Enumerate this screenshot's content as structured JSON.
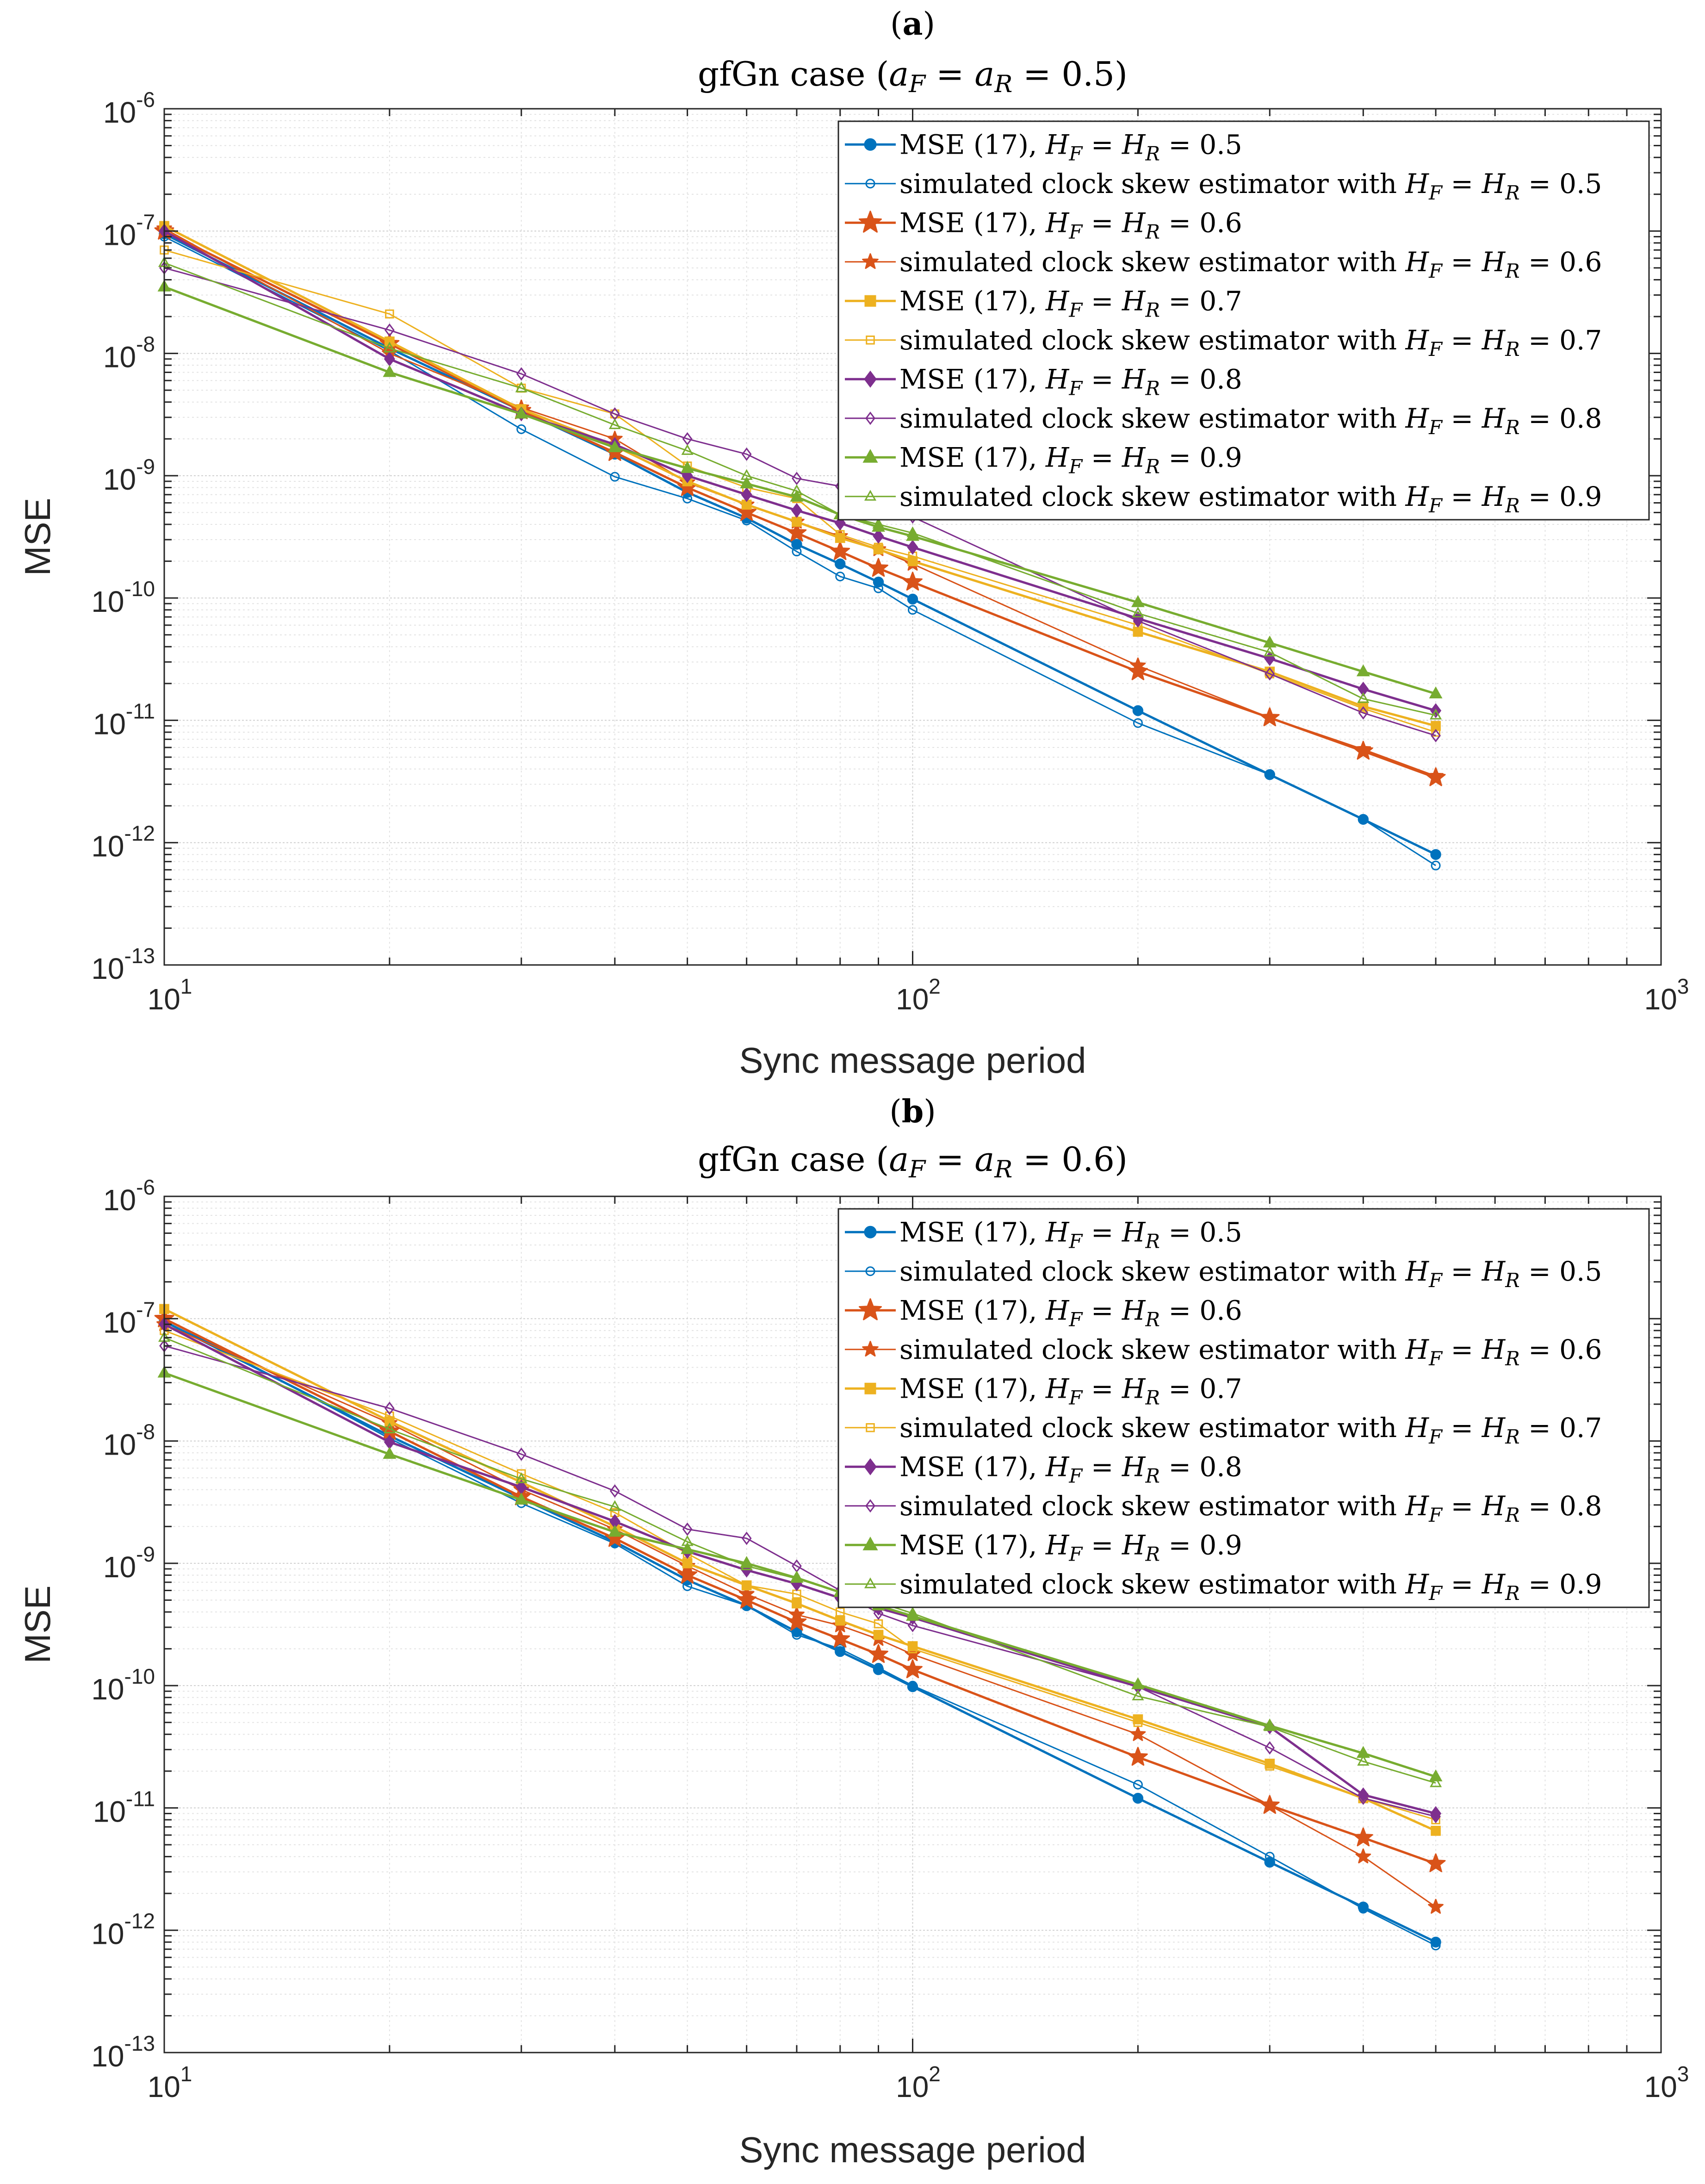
{
  "x_values": [
    10,
    20,
    30,
    40,
    50,
    60,
    70,
    80,
    90,
    100,
    200,
    300,
    400,
    500
  ],
  "chart_data": [
    {
      "type": "line",
      "panel_label": "(a)",
      "title": "gfGn case (a_F = a_R = 0.5)",
      "title_text": "gfGn case (",
      "title_math": "a_F = a_R = 0.5",
      "xlabel": "Sync message period",
      "ylabel": "MSE",
      "xscale": "log",
      "yscale": "log",
      "xlim": [
        10,
        1000
      ],
      "ylim": [
        1e-13,
        1e-06
      ],
      "grid": true,
      "legend_position": "top-right",
      "x_tick_labels": [
        {
          "base": "10",
          "exp": "1"
        },
        {
          "base": "10",
          "exp": "2"
        },
        {
          "base": "10",
          "exp": "3"
        }
      ],
      "y_tick_labels": [
        {
          "base": "10",
          "exp": "-13"
        },
        {
          "base": "10",
          "exp": "-12"
        },
        {
          "base": "10",
          "exp": "-11"
        },
        {
          "base": "10",
          "exp": "-10"
        },
        {
          "base": "10",
          "exp": "-9"
        },
        {
          "base": "10",
          "exp": "-8"
        },
        {
          "base": "10",
          "exp": "-7"
        },
        {
          "base": "10",
          "exp": "-6"
        }
      ],
      "series": [
        {
          "name": "MSE (17), H_F = H_R = 0.5",
          "legend_prefix": "MSE (17), ",
          "legend_math": "H_F = H_R = 0.5",
          "color": "#0072BD",
          "marker": "circle",
          "filled": true,
          "bold": true,
          "values": [
            9.5e-08,
            1.1e-08,
            3.4e-09,
            1.5e-09,
            7.3e-10,
            4.5e-10,
            2.75e-10,
            1.9e-10,
            1.35e-10,
            9.8e-11,
            1.2e-11,
            3.6e-12,
            1.55e-12,
            8e-13
          ]
        },
        {
          "name": "simulated clock skew estimator with H_F = H_R = 0.5",
          "legend_prefix": "simulated clock skew estimator with ",
          "legend_math": "H_F = H_R = 0.5",
          "color": "#0072BD",
          "marker": "circle",
          "filled": false,
          "bold": false,
          "values": [
            9e-08,
            1.05e-08,
            2.4e-09,
            9.8e-10,
            6.5e-10,
            4.3e-10,
            2.4e-10,
            1.5e-10,
            1.2e-10,
            8e-11,
            9.5e-12,
            3.6e-12,
            1.55e-12,
            6.5e-13
          ]
        },
        {
          "name": "MSE (17), H_F = H_R = 0.6",
          "legend_prefix": "MSE (17), ",
          "legend_math": "H_F = H_R = 0.6",
          "color": "#D95319",
          "marker": "star",
          "filled": true,
          "bold": true,
          "values": [
            1e-07,
            1.2e-08,
            3.4e-09,
            1.55e-09,
            8e-10,
            5e-10,
            3.4e-10,
            2.4e-10,
            1.75e-10,
            1.35e-10,
            2.5e-11,
            1.05e-11,
            5.6e-12,
            3.4e-12
          ]
        },
        {
          "name": "simulated clock skew estimator with H_F = H_R = 0.6",
          "legend_prefix": "simulated clock skew estimator with ",
          "legend_math": "H_F = H_R = 0.6",
          "color": "#D95319",
          "marker": "star",
          "filled": true,
          "bold": false,
          "values": [
            1.05e-07,
            1e-08,
            3.6e-09,
            2e-09,
            8.8e-10,
            5.8e-10,
            4.2e-10,
            3.2e-10,
            2.5e-10,
            1.9e-10,
            2.8e-11,
            1.05e-11,
            5.8e-12,
            3.5e-12
          ]
        },
        {
          "name": "MSE (17), H_F = H_R = 0.7",
          "legend_prefix": "MSE (17), ",
          "legend_math": "H_F = H_R = 0.7",
          "color": "#EDB120",
          "marker": "square",
          "filled": true,
          "bold": true,
          "values": [
            1.1e-07,
            1.25e-08,
            3.5e-09,
            1.75e-09,
            9e-10,
            5.8e-10,
            4.2e-10,
            3.1e-10,
            2.5e-10,
            2e-10,
            5.3e-11,
            2.5e-11,
            1.3e-11,
            9e-12
          ]
        },
        {
          "name": "simulated clock skew estimator with H_F = H_R = 0.7",
          "legend_prefix": "simulated clock skew estimator with ",
          "legend_math": "H_F = H_R = 0.7",
          "color": "#EDB120",
          "marker": "square",
          "filled": false,
          "bold": false,
          "values": [
            7e-08,
            2.1e-08,
            5.2e-09,
            3.2e-09,
            1.2e-09,
            8e-10,
            6.5e-10,
            3.3e-10,
            2.6e-10,
            2.2e-10,
            6e-11,
            2.4e-11,
            1.25e-11,
            8e-12
          ]
        },
        {
          "name": "MSE (17), H_F = H_R = 0.8",
          "legend_prefix": "MSE (17), ",
          "legend_math": "H_F = H_R = 0.8",
          "color": "#7E2F8E",
          "marker": "diamond",
          "filled": true,
          "bold": true,
          "values": [
            1e-07,
            9e-09,
            3.2e-09,
            1.8e-09,
            1e-09,
            7e-10,
            5.2e-10,
            4.1e-10,
            3.2e-10,
            2.6e-10,
            6.8e-11,
            3.2e-11,
            1.8e-11,
            1.2e-11
          ]
        },
        {
          "name": "simulated clock skew estimator with H_F = H_R = 0.8",
          "legend_prefix": "simulated clock skew estimator with ",
          "legend_math": "H_F = H_R = 0.8",
          "color": "#7E2F8E",
          "marker": "diamond",
          "filled": false,
          "bold": false,
          "values": [
            5e-08,
            1.55e-08,
            6.8e-09,
            3.2e-09,
            2e-09,
            1.5e-09,
            9.5e-10,
            8.2e-10,
            5.5e-10,
            4.6e-10,
            6.5e-11,
            2.4e-11,
            1.15e-11,
            7.5e-12
          ]
        },
        {
          "name": "MSE (17), H_F = H_R = 0.9",
          "legend_prefix": "MSE (17), ",
          "legend_math": "H_F = H_R = 0.9",
          "color": "#77AC30",
          "marker": "triangle",
          "filled": true,
          "bold": true,
          "values": [
            3.5e-08,
            7e-09,
            3.2e-09,
            1.7e-09,
            1.15e-09,
            8.6e-10,
            6.7e-10,
            4.8e-10,
            3.8e-10,
            3.2e-10,
            9.2e-11,
            4.3e-11,
            2.5e-11,
            1.65e-11
          ]
        },
        {
          "name": "simulated clock skew estimator with H_F = H_R = 0.9",
          "legend_prefix": "simulated clock skew estimator with ",
          "legend_math": "H_F = H_R = 0.9",
          "color": "#77AC30",
          "marker": "triangle",
          "filled": false,
          "bold": false,
          "values": [
            5.5e-08,
            1.1e-08,
            5.2e-09,
            2.6e-09,
            1.6e-09,
            1e-09,
            7.5e-10,
            4.8e-10,
            4e-10,
            3.4e-10,
            7.5e-11,
            3.6e-11,
            1.5e-11,
            1.1e-11
          ]
        }
      ]
    },
    {
      "type": "line",
      "panel_label": "(b)",
      "title": "gfGn case (a_F = a_R = 0.6)",
      "title_text": "gfGn case (",
      "title_math": "a_F = a_R = 0.6",
      "xlabel": "Sync message period",
      "ylabel": "MSE",
      "xscale": "log",
      "yscale": "log",
      "xlim": [
        10,
        1000
      ],
      "ylim": [
        1e-13,
        1e-06
      ],
      "grid": true,
      "legend_position": "top-right",
      "x_tick_labels": [
        {
          "base": "10",
          "exp": "1"
        },
        {
          "base": "10",
          "exp": "2"
        },
        {
          "base": "10",
          "exp": "3"
        }
      ],
      "y_tick_labels": [
        {
          "base": "10",
          "exp": "-13"
        },
        {
          "base": "10",
          "exp": "-12"
        },
        {
          "base": "10",
          "exp": "-11"
        },
        {
          "base": "10",
          "exp": "-10"
        },
        {
          "base": "10",
          "exp": "-9"
        },
        {
          "base": "10",
          "exp": "-8"
        },
        {
          "base": "10",
          "exp": "-7"
        },
        {
          "base": "10",
          "exp": "-6"
        }
      ],
      "series": [
        {
          "name": "MSE (17), H_F = H_R = 0.5",
          "legend_prefix": "MSE (17), ",
          "legend_math": "H_F = H_R = 0.5",
          "color": "#0072BD",
          "marker": "circle",
          "filled": true,
          "bold": true,
          "values": [
            9.5e-08,
            1.1e-08,
            3.4e-09,
            1.5e-09,
            7.3e-10,
            4.5e-10,
            2.75e-10,
            1.9e-10,
            1.35e-10,
            9.8e-11,
            1.2e-11,
            3.6e-12,
            1.55e-12,
            8e-13
          ]
        },
        {
          "name": "simulated clock skew estimator with H_F = H_R = 0.5",
          "legend_prefix": "simulated clock skew estimator with ",
          "legend_math": "H_F = H_R = 0.5",
          "color": "#0072BD",
          "marker": "circle",
          "filled": false,
          "bold": false,
          "values": [
            1e-07,
            1.05e-08,
            3.1e-09,
            1.45e-09,
            6.5e-10,
            4.5e-10,
            2.6e-10,
            2e-10,
            1.4e-10,
            1e-10,
            1.55e-11,
            4e-12,
            1.5e-12,
            7.5e-13
          ]
        },
        {
          "name": "MSE (17), H_F = H_R = 0.6",
          "legend_prefix": "MSE (17), ",
          "legend_math": "H_F = H_R = 0.6",
          "color": "#D95319",
          "marker": "star",
          "filled": true,
          "bold": true,
          "values": [
            1e-07,
            1.2e-08,
            3.5e-09,
            1.6e-09,
            8e-10,
            5e-10,
            3.3e-10,
            2.4e-10,
            1.8e-10,
            1.35e-10,
            2.6e-11,
            1.05e-11,
            5.7e-12,
            3.5e-12
          ]
        },
        {
          "name": "simulated clock skew estimator with H_F = H_R = 0.6",
          "legend_prefix": "simulated clock skew estimator with ",
          "legend_math": "H_F = H_R = 0.6",
          "color": "#D95319",
          "marker": "star",
          "filled": true,
          "bold": false,
          "values": [
            9e-08,
            1.4e-08,
            4e-09,
            1.9e-09,
            9.5e-10,
            5.6e-10,
            3.8e-10,
            3.1e-10,
            2.4e-10,
            1.8e-10,
            4e-11,
            1.05e-11,
            4e-12,
            1.55e-12
          ]
        },
        {
          "name": "MSE (17), H_F = H_R = 0.7",
          "legend_prefix": "MSE (17), ",
          "legend_math": "H_F = H_R = 0.7",
          "color": "#EDB120",
          "marker": "square",
          "filled": true,
          "bold": true,
          "values": [
            1.2e-07,
            1.45e-08,
            4.6e-09,
            2e-09,
            1e-09,
            6.6e-10,
            4.7e-10,
            3.4e-10,
            2.6e-10,
            2.1e-10,
            5.3e-11,
            2.3e-11,
            1.2e-11,
            6.5e-12
          ]
        },
        {
          "name": "simulated clock skew estimator with H_F = H_R = 0.7",
          "legend_prefix": "simulated clock skew estimator with ",
          "legend_math": "H_F = H_R = 0.7",
          "color": "#EDB120",
          "marker": "square",
          "filled": false,
          "bold": false,
          "values": [
            8e-08,
            1.6e-08,
            5.4e-09,
            2.6e-09,
            1.2e-09,
            6.6e-10,
            5.6e-10,
            4e-10,
            3.2e-10,
            2e-10,
            5e-11,
            2.2e-11,
            1.2e-11,
            8e-12
          ]
        },
        {
          "name": "MSE (17), H_F = H_R = 0.8",
          "legend_prefix": "MSE (17), ",
          "legend_math": "H_F = H_R = 0.8",
          "color": "#7E2F8E",
          "marker": "diamond",
          "filled": true,
          "bold": true,
          "values": [
            9e-08,
            9.8e-09,
            4.2e-09,
            2.2e-09,
            1.25e-09,
            8.8e-10,
            6.8e-10,
            5.2e-10,
            4.3e-10,
            3.6e-10,
            9.8e-11,
            4.6e-11,
            1.28e-11,
            9e-12
          ]
        },
        {
          "name": "simulated clock skew estimator with H_F = H_R = 0.8",
          "legend_prefix": "simulated clock skew estimator with ",
          "legend_math": "H_F = H_R = 0.8",
          "color": "#7E2F8E",
          "marker": "diamond",
          "filled": false,
          "bold": false,
          "values": [
            6e-08,
            1.85e-08,
            7.8e-09,
            3.9e-09,
            1.9e-09,
            1.6e-09,
            9.5e-10,
            6e-10,
            3.9e-10,
            3.1e-10,
            9.8e-11,
            3.1e-11,
            1.2e-11,
            8.5e-12
          ]
        },
        {
          "name": "MSE (17), H_F = H_R = 0.9",
          "legend_prefix": "MSE (17), ",
          "legend_math": "H_F = H_R = 0.9",
          "color": "#77AC30",
          "marker": "triangle",
          "filled": true,
          "bold": true,
          "values": [
            3.6e-08,
            7.8e-09,
            3.3e-09,
            1.8e-09,
            1.3e-09,
            1e-09,
            7.6e-10,
            5.8e-10,
            4.5e-10,
            3.7e-10,
            1.02e-10,
            4.7e-11,
            2.8e-11,
            1.8e-11
          ]
        },
        {
          "name": "simulated clock skew estimator with H_F = H_R = 0.9",
          "legend_prefix": "simulated clock skew estimator with ",
          "legend_math": "H_F = H_R = 0.9",
          "color": "#77AC30",
          "marker": "triangle",
          "filled": false,
          "bold": false,
          "values": [
            7e-08,
            1.25e-08,
            4.9e-09,
            2.9e-09,
            1.5e-09,
            9.5e-10,
            7.5e-10,
            5.8e-10,
            4.8e-10,
            3.9e-10,
            8.2e-11,
            4.6e-11,
            2.4e-11,
            1.6e-11
          ]
        }
      ]
    }
  ]
}
